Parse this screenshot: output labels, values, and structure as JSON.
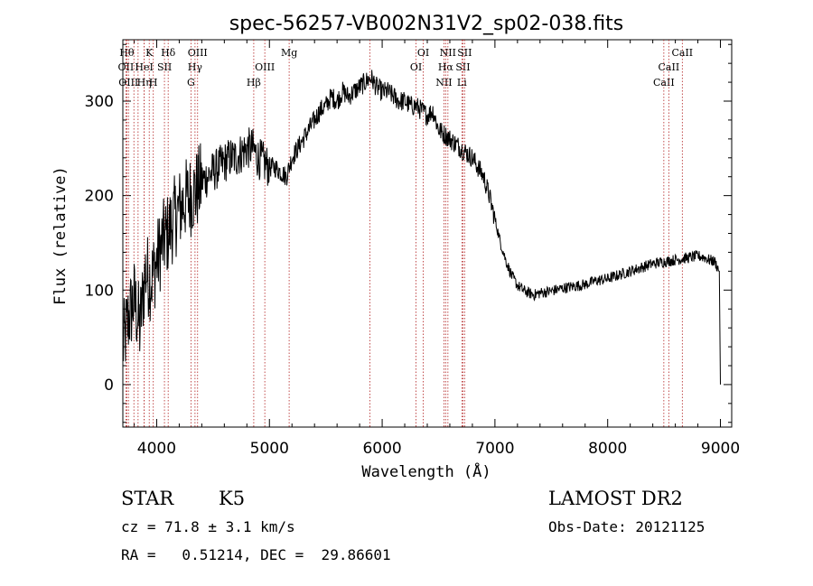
{
  "chart_data": {
    "type": "line",
    "title": "spec-56257-VB002N31V2_sp02-038.fits",
    "xlabel": "Wavelength (Å)",
    "ylabel": "Flux (relative)",
    "xlim": [
      3700,
      9100
    ],
    "ylim": [
      -45,
      365
    ],
    "xticks": [
      4000,
      5000,
      6000,
      7000,
      8000,
      9000
    ],
    "yticks": [
      0,
      100,
      200,
      300
    ],
    "grid": false,
    "series": [
      {
        "x": [
          3700,
          3750,
          3800,
          3850,
          3900,
          3950,
          4000,
          4050,
          4100,
          4150,
          4200,
          4250,
          4300,
          4350,
          4400,
          4450,
          4500,
          4550,
          4600,
          4650,
          4700,
          4750,
          4800,
          4850,
          4900,
          4950,
          5000,
          5050,
          5100,
          5150,
          5200,
          5250,
          5300,
          5350,
          5400,
          5450,
          5500,
          5550,
          5600,
          5650,
          5700,
          5750,
          5800,
          5850,
          5900,
          5950,
          6000,
          6050,
          6100,
          6150,
          6200,
          6250,
          6300,
          6350,
          6400,
          6450,
          6500,
          6550,
          6600,
          6650,
          6700,
          6750,
          6800,
          6850,
          6900,
          6950,
          7000,
          7050,
          7100,
          7150,
          7200,
          7250,
          7300,
          7350,
          7400,
          7500,
          7600,
          7700,
          7800,
          7900,
          8000,
          8100,
          8200,
          8300,
          8400,
          8500,
          8600,
          8700,
          8800,
          8850,
          8900,
          8950,
          8990,
          9000
        ],
        "y": [
          40,
          70,
          90,
          60,
          120,
          110,
          130,
          150,
          160,
          175,
          185,
          195,
          200,
          205,
          215,
          220,
          225,
          230,
          235,
          240,
          240,
          245,
          250,
          250,
          240,
          235,
          230,
          230,
          225,
          220,
          240,
          250,
          260,
          270,
          280,
          290,
          295,
          305,
          300,
          310,
          305,
          310,
          315,
          320,
          325,
          315,
          310,
          310,
          305,
          300,
          300,
          295,
          295,
          290,
          285,
          290,
          270,
          265,
          260,
          255,
          250,
          245,
          240,
          230,
          220,
          200,
          175,
          150,
          130,
          115,
          105,
          100,
          97,
          95,
          97,
          99,
          102,
          104,
          106,
          110,
          112,
          116,
          120,
          124,
          128,
          130,
          132,
          134,
          136,
          135,
          132,
          130,
          120,
          0
        ]
      }
    ],
    "lines": [
      {
        "w": 3735,
        "label": "Hθ",
        "row": 1
      },
      {
        "w": 3727,
        "label": "OII",
        "row": 2
      },
      {
        "w": 3750,
        "label": "OIII",
        "row": 3
      },
      {
        "w": 3798,
        "label": "",
        "row": 0
      },
      {
        "w": 3835,
        "label": "",
        "row": 0
      },
      {
        "w": 3889,
        "label": "HeI",
        "row": 2
      },
      {
        "w": 3890,
        "label": "Hη",
        "row": 3
      },
      {
        "w": 3934,
        "label": "K",
        "row": 1
      },
      {
        "w": 3970,
        "label": "H",
        "row": 3
      },
      {
        "w": 4069,
        "label": "SII",
        "row": 2
      },
      {
        "w": 4102,
        "label": "Hδ",
        "row": 1
      },
      {
        "w": 4304,
        "label": "G",
        "row": 3
      },
      {
        "w": 4340,
        "label": "Hγ",
        "row": 2
      },
      {
        "w": 4363,
        "label": "OIII",
        "row": 1
      },
      {
        "w": 4861,
        "label": "Hβ",
        "row": 3
      },
      {
        "w": 4959,
        "label": "OIII",
        "row": 2
      },
      {
        "w": 5175,
        "label": "Mg",
        "row": 1
      },
      {
        "w": 5892,
        "label": "",
        "row": 0
      },
      {
        "w": 6300,
        "label": "OI",
        "row": 2
      },
      {
        "w": 6364,
        "label": "OI",
        "row": 1
      },
      {
        "w": 6548,
        "label": "NII",
        "row": 3
      },
      {
        "w": 6563,
        "label": "Hα",
        "row": 2
      },
      {
        "w": 6583,
        "label": "NII",
        "row": 1
      },
      {
        "w": 6716,
        "label": "SII",
        "row": 2
      },
      {
        "w": 6707,
        "label": "Li",
        "row": 3
      },
      {
        "w": 6731,
        "label": "SII",
        "row": 1
      },
      {
        "w": 8498,
        "label": "CaII",
        "row": 3
      },
      {
        "w": 8542,
        "label": "CaII",
        "row": 2
      },
      {
        "w": 8662,
        "label": "CaII",
        "row": 1
      }
    ]
  },
  "info": {
    "class_label": "STAR",
    "subclass": "K5",
    "survey": "LAMOST DR2",
    "cz": "cz = 71.8 ± 3.1 km/s",
    "obs_date": "Obs-Date: 20121125",
    "radec": "RA =   0.51214, DEC =  29.86601"
  }
}
